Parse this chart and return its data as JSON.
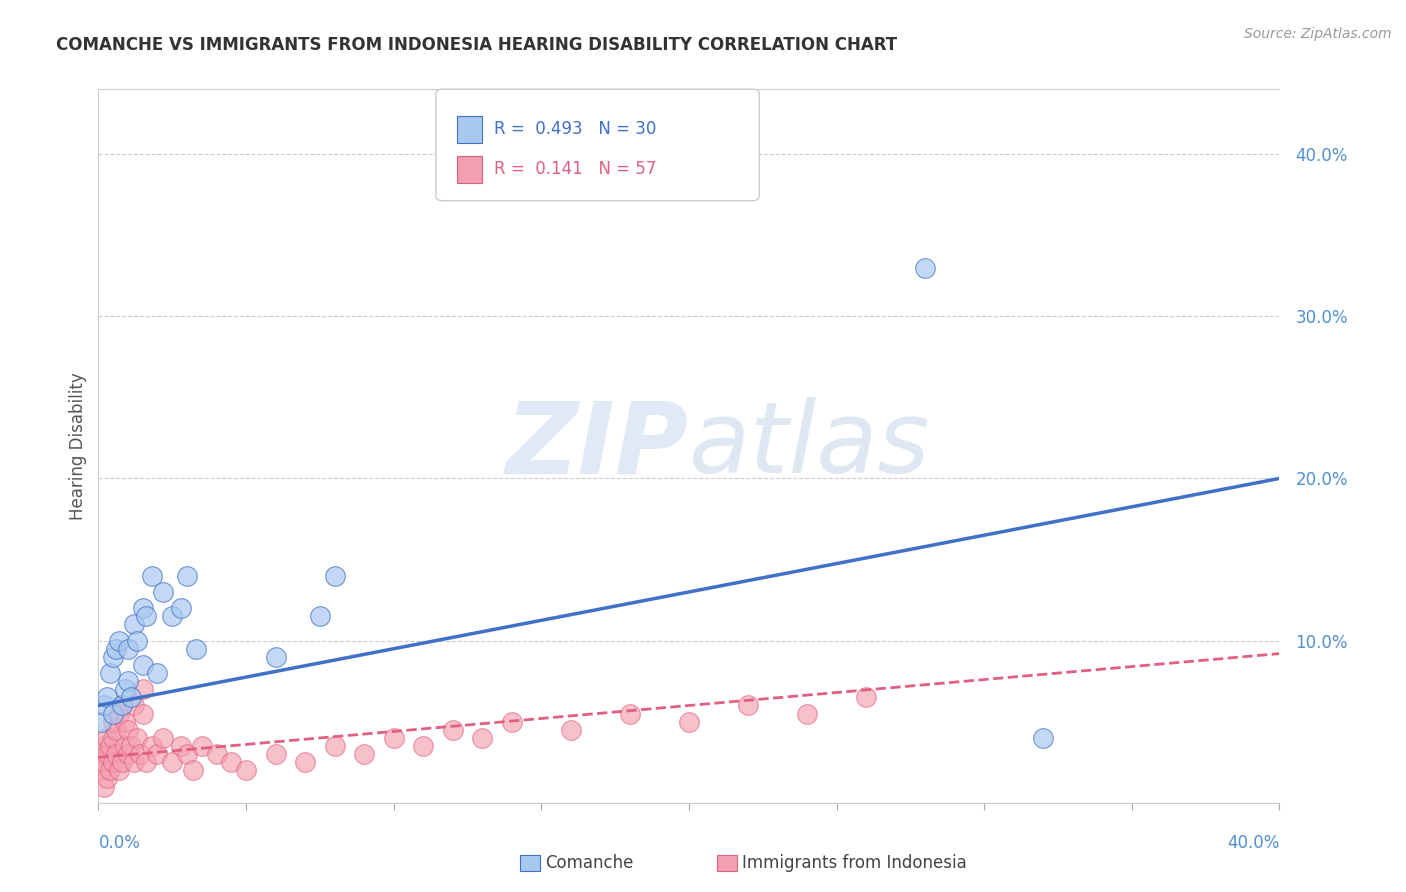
{
  "title": "COMANCHE VS IMMIGRANTS FROM INDONESIA HEARING DISABILITY CORRELATION CHART",
  "source": "Source: ZipAtlas.com",
  "ylabel": "Hearing Disability",
  "xlim": [
    0.0,
    0.4
  ],
  "ylim": [
    0.0,
    0.44
  ],
  "ytick_values": [
    0.0,
    0.1,
    0.2,
    0.3,
    0.4
  ],
  "ytick_labels": [
    "",
    "10.0%",
    "20.0%",
    "30.0%",
    "40.0%"
  ],
  "xtick_values": [
    0.0,
    0.05,
    0.1,
    0.15,
    0.2,
    0.25,
    0.3,
    0.35,
    0.4
  ],
  "color_blue": "#a8c8f0",
  "color_pink": "#f4a0b0",
  "line_blue": "#4070c8",
  "line_pink": "#e06080",
  "watermark_zip": "ZIP",
  "watermark_atlas": "atlas",
  "background_color": "#ffffff",
  "grid_color": "#cccccc",
  "title_color": "#333333",
  "tick_color": "#5090d0",
  "source_color": "#999999",
  "comanche_x": [
    0.001,
    0.002,
    0.003,
    0.004,
    0.005,
    0.005,
    0.006,
    0.007,
    0.008,
    0.009,
    0.01,
    0.01,
    0.011,
    0.012,
    0.013,
    0.015,
    0.015,
    0.016,
    0.018,
    0.02,
    0.022,
    0.025,
    0.028,
    0.03,
    0.033,
    0.06,
    0.075,
    0.08,
    0.28,
    0.32
  ],
  "comanche_y": [
    0.05,
    0.06,
    0.065,
    0.08,
    0.055,
    0.09,
    0.095,
    0.1,
    0.06,
    0.07,
    0.075,
    0.095,
    0.065,
    0.11,
    0.1,
    0.12,
    0.085,
    0.115,
    0.14,
    0.08,
    0.13,
    0.115,
    0.12,
    0.14,
    0.095,
    0.09,
    0.115,
    0.14,
    0.33,
    0.04
  ],
  "indonesia_x": [
    0.001,
    0.001,
    0.002,
    0.002,
    0.002,
    0.003,
    0.003,
    0.003,
    0.004,
    0.004,
    0.005,
    0.005,
    0.005,
    0.006,
    0.006,
    0.007,
    0.007,
    0.008,
    0.008,
    0.009,
    0.009,
    0.01,
    0.01,
    0.011,
    0.012,
    0.012,
    0.013,
    0.014,
    0.015,
    0.015,
    0.016,
    0.018,
    0.02,
    0.022,
    0.025,
    0.028,
    0.03,
    0.032,
    0.035,
    0.04,
    0.045,
    0.05,
    0.06,
    0.07,
    0.08,
    0.09,
    0.1,
    0.11,
    0.12,
    0.13,
    0.14,
    0.16,
    0.18,
    0.2,
    0.22,
    0.24,
    0.26
  ],
  "indonesia_y": [
    0.02,
    0.03,
    0.01,
    0.035,
    0.025,
    0.015,
    0.03,
    0.04,
    0.02,
    0.035,
    0.025,
    0.04,
    0.05,
    0.03,
    0.045,
    0.02,
    0.055,
    0.025,
    0.06,
    0.035,
    0.05,
    0.03,
    0.045,
    0.035,
    0.025,
    0.06,
    0.04,
    0.03,
    0.055,
    0.07,
    0.025,
    0.035,
    0.03,
    0.04,
    0.025,
    0.035,
    0.03,
    0.02,
    0.035,
    0.03,
    0.025,
    0.02,
    0.03,
    0.025,
    0.035,
    0.03,
    0.04,
    0.035,
    0.045,
    0.04,
    0.05,
    0.045,
    0.055,
    0.05,
    0.06,
    0.055,
    0.065
  ],
  "blue_line_x0": 0.0,
  "blue_line_y0": 0.06,
  "blue_line_x1": 0.4,
  "blue_line_y1": 0.2,
  "pink_line_x0": 0.0,
  "pink_line_y0": 0.028,
  "pink_line_x1": 0.4,
  "pink_line_y1": 0.092
}
